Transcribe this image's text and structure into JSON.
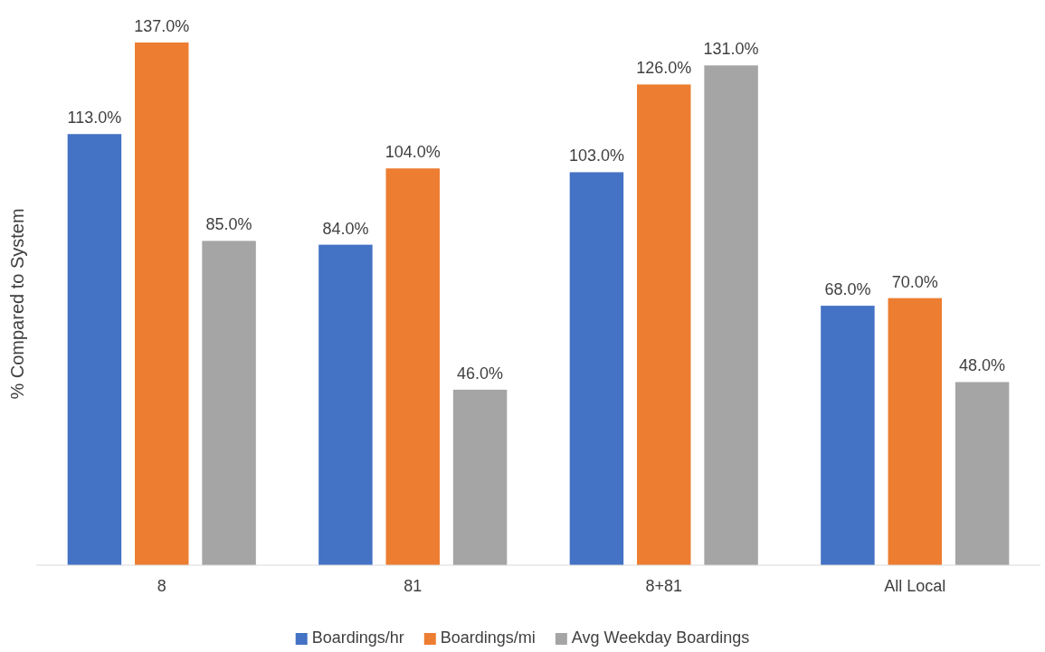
{
  "chart_data": {
    "type": "bar",
    "ylabel": "% Compared to System",
    "categories": [
      "8",
      "81",
      "8+81",
      "All Local"
    ],
    "series": [
      {
        "name": "Boardings/hr",
        "color": "#4472c4",
        "values": [
          113,
          84,
          103,
          68
        ],
        "value_labels": [
          "113.0%",
          "84.0%",
          "103.0%",
          "68.0%"
        ]
      },
      {
        "name": "Boardings/mi",
        "color": "#ed7d31",
        "values": [
          137,
          104,
          126,
          70
        ],
        "value_labels": [
          "137.0%",
          "104.0%",
          "126.0%",
          "70.0%"
        ]
      },
      {
        "name": "Avg Weekday Boardings",
        "color": "#a5a5a5",
        "values": [
          85,
          46,
          131,
          48
        ],
        "value_labels": [
          "85.0%",
          "46.0%",
          "131.0%",
          "48.0%"
        ]
      }
    ],
    "legend": "bottom",
    "grid": false
  }
}
